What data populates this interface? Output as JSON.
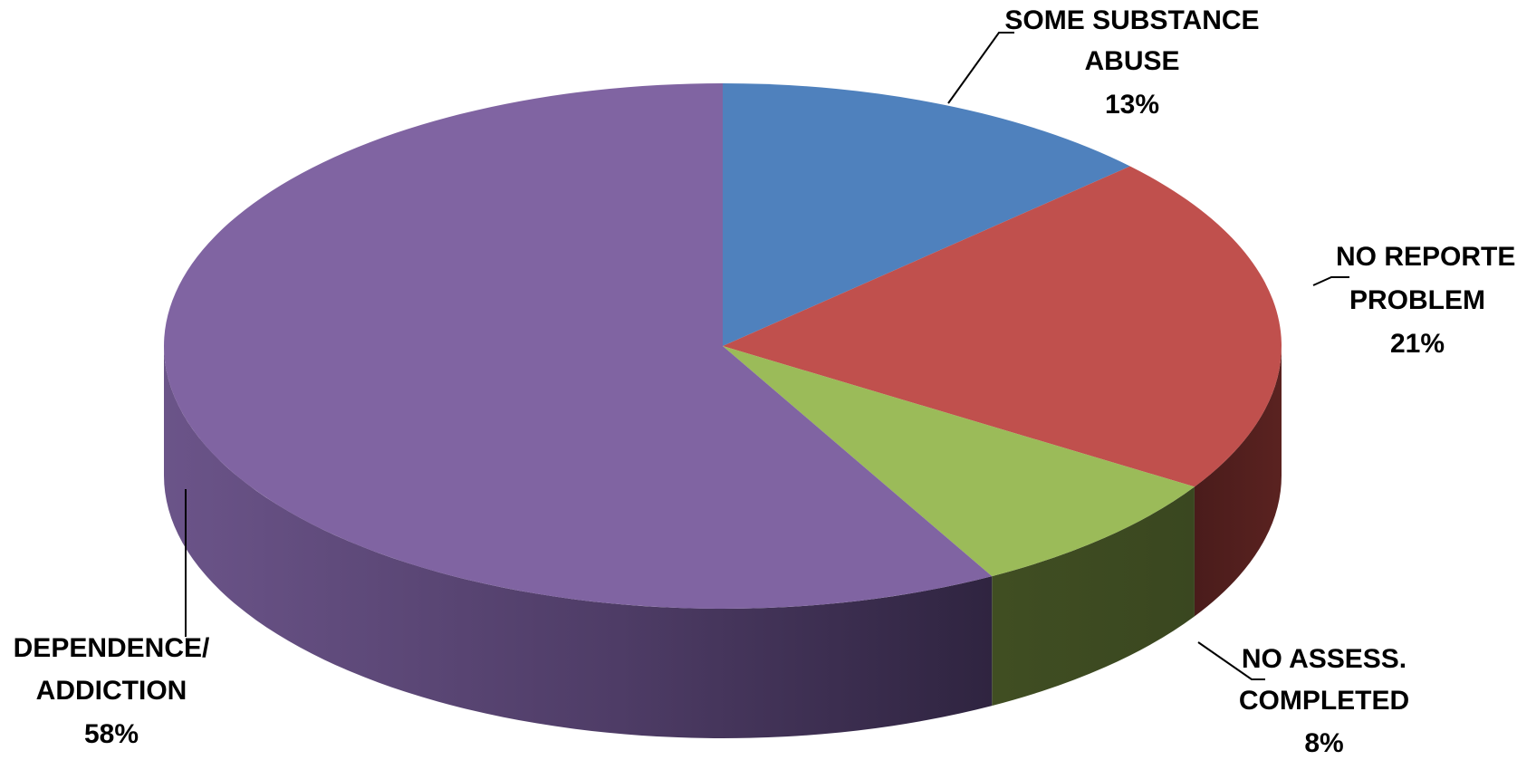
{
  "chart_data": {
    "type": "pie",
    "style": "3d",
    "slices": [
      {
        "name": "SOME SUBSTANCE ABUSE",
        "label_lines": [
          "SOME SUBSTANCE",
          "ABUSE"
        ],
        "value": 13,
        "value_label": "13%",
        "color": "#4F81BD",
        "side_color": "#2C4D75"
      },
      {
        "name": "NO REPORTED PROBLEM",
        "label_lines": [
          "NO REPORTED",
          "PROBLEM"
        ],
        "value": 21,
        "value_label": "21%",
        "color": "#C0504D",
        "side_color": "#541F1E"
      },
      {
        "name": "NO ASSESS. COMPLETED",
        "label_lines": [
          "NO ASSESS.",
          "COMPLETED"
        ],
        "value": 8,
        "value_label": "8%",
        "color": "#9BBB59",
        "side_color": "#3E4B21"
      },
      {
        "name": "DEPENDENCE/ ADDICTION",
        "label_lines": [
          "DEPENDENCE/",
          "ADDICTION"
        ],
        "value": 58,
        "value_label": "58%",
        "color": "#8064A2",
        "side_color": "#5E4A78"
      }
    ],
    "legend": "none",
    "data_labels": "outside with leader lines"
  }
}
